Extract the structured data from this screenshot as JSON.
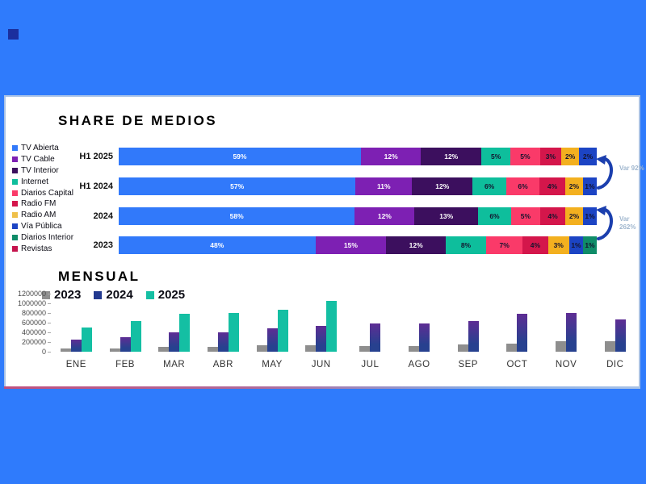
{
  "colors": {
    "background": "#2F7BFC",
    "panel_border": "#A9C2E6",
    "bottom_border_left": "#C0507E",
    "bottom_border_right": "#86ABE4",
    "corner_square": "#1B2F9E",
    "arrow": "#1B3FAE",
    "var_text": "#9FB6CE"
  },
  "chart_data": [
    {
      "type": "stacked_bar_horizontal",
      "title": "SHARE DE MEDIOS",
      "unit": "percent",
      "legend": [
        {
          "label": "TV Abierta",
          "color": "#3179FA"
        },
        {
          "label": "TV Cable",
          "color": "#7D20B3"
        },
        {
          "label": "TV Interior",
          "color": "#3C0F5E"
        },
        {
          "label": "Internet",
          "color": "#0EBE9C"
        },
        {
          "label": "Diarios Capital",
          "color": "#FA3A69"
        },
        {
          "label": "Radio FM",
          "color": "#D4164B"
        },
        {
          "label": "Radio AM",
          "color": "#EFC04A"
        },
        {
          "label": "Vía Pública",
          "color": "#1C44C4"
        },
        {
          "label": "Diarios Interior",
          "color": "#0F8C68"
        },
        {
          "label": "Revistas",
          "color": "#C5134C"
        }
      ],
      "bar_colors": [
        "#3179FA",
        "#7D20B3",
        "#3C0F5E",
        "#0EBE9C",
        "#FA3A69",
        "#D4164B",
        "#F3B01F",
        "#1C44C4",
        "#0F8C68",
        "#C5134C"
      ],
      "categories": [
        "H1 2025",
        "H1 2024",
        "2024",
        "2023"
      ],
      "series": [
        {
          "category": "H1 2025",
          "values_pct": [
            59,
            12,
            12,
            5,
            5,
            3,
            2,
            2,
            0,
            0
          ]
        },
        {
          "category": "H1 2024",
          "values_pct": [
            57,
            11,
            12,
            6,
            6,
            4,
            2,
            1,
            0,
            0
          ]
        },
        {
          "category": "2024",
          "values_pct": [
            58,
            12,
            13,
            6,
            5,
            4,
            2,
            1,
            0,
            0
          ]
        },
        {
          "category": "2023",
          "values_pct": [
            48,
            15,
            12,
            8,
            7,
            4,
            3,
            1,
            1,
            0
          ]
        }
      ],
      "annotations": [
        {
          "label": "Var 92%",
          "between": [
            "H1 2025",
            "H1 2024"
          ]
        },
        {
          "label": "Var 262%",
          "between": [
            "2024",
            "2023"
          ]
        }
      ]
    },
    {
      "type": "bar",
      "title": "MENSUAL",
      "categories": [
        "ENE",
        "FEB",
        "MAR",
        "ABR",
        "MAY",
        "JUN",
        "JUL",
        "AGO",
        "SEP",
        "OCT",
        "NOV",
        "DIC"
      ],
      "series": [
        {
          "name": "2023",
          "color": "#8E8E8E",
          "values": [
            70000,
            75000,
            100000,
            95000,
            130000,
            130000,
            115000,
            115000,
            150000,
            175000,
            210000,
            210000
          ]
        },
        {
          "name": "2024",
          "color": "#22398F",
          "values": [
            250000,
            300000,
            400000,
            400000,
            480000,
            540000,
            580000,
            590000,
            630000,
            790000,
            800000,
            660000
          ]
        },
        {
          "name": "2025",
          "color": "#14BFA3",
          "values": [
            505000,
            640000,
            780000,
            800000,
            860000,
            1050000,
            null,
            null,
            null,
            null,
            null,
            null
          ]
        }
      ],
      "ylim": [
        0,
        1200000
      ],
      "yticks": [
        "1200000",
        "1000000",
        "800000",
        "600000",
        "400000",
        "200000",
        "0"
      ],
      "grid": false,
      "legend_position": "top-left"
    }
  ]
}
